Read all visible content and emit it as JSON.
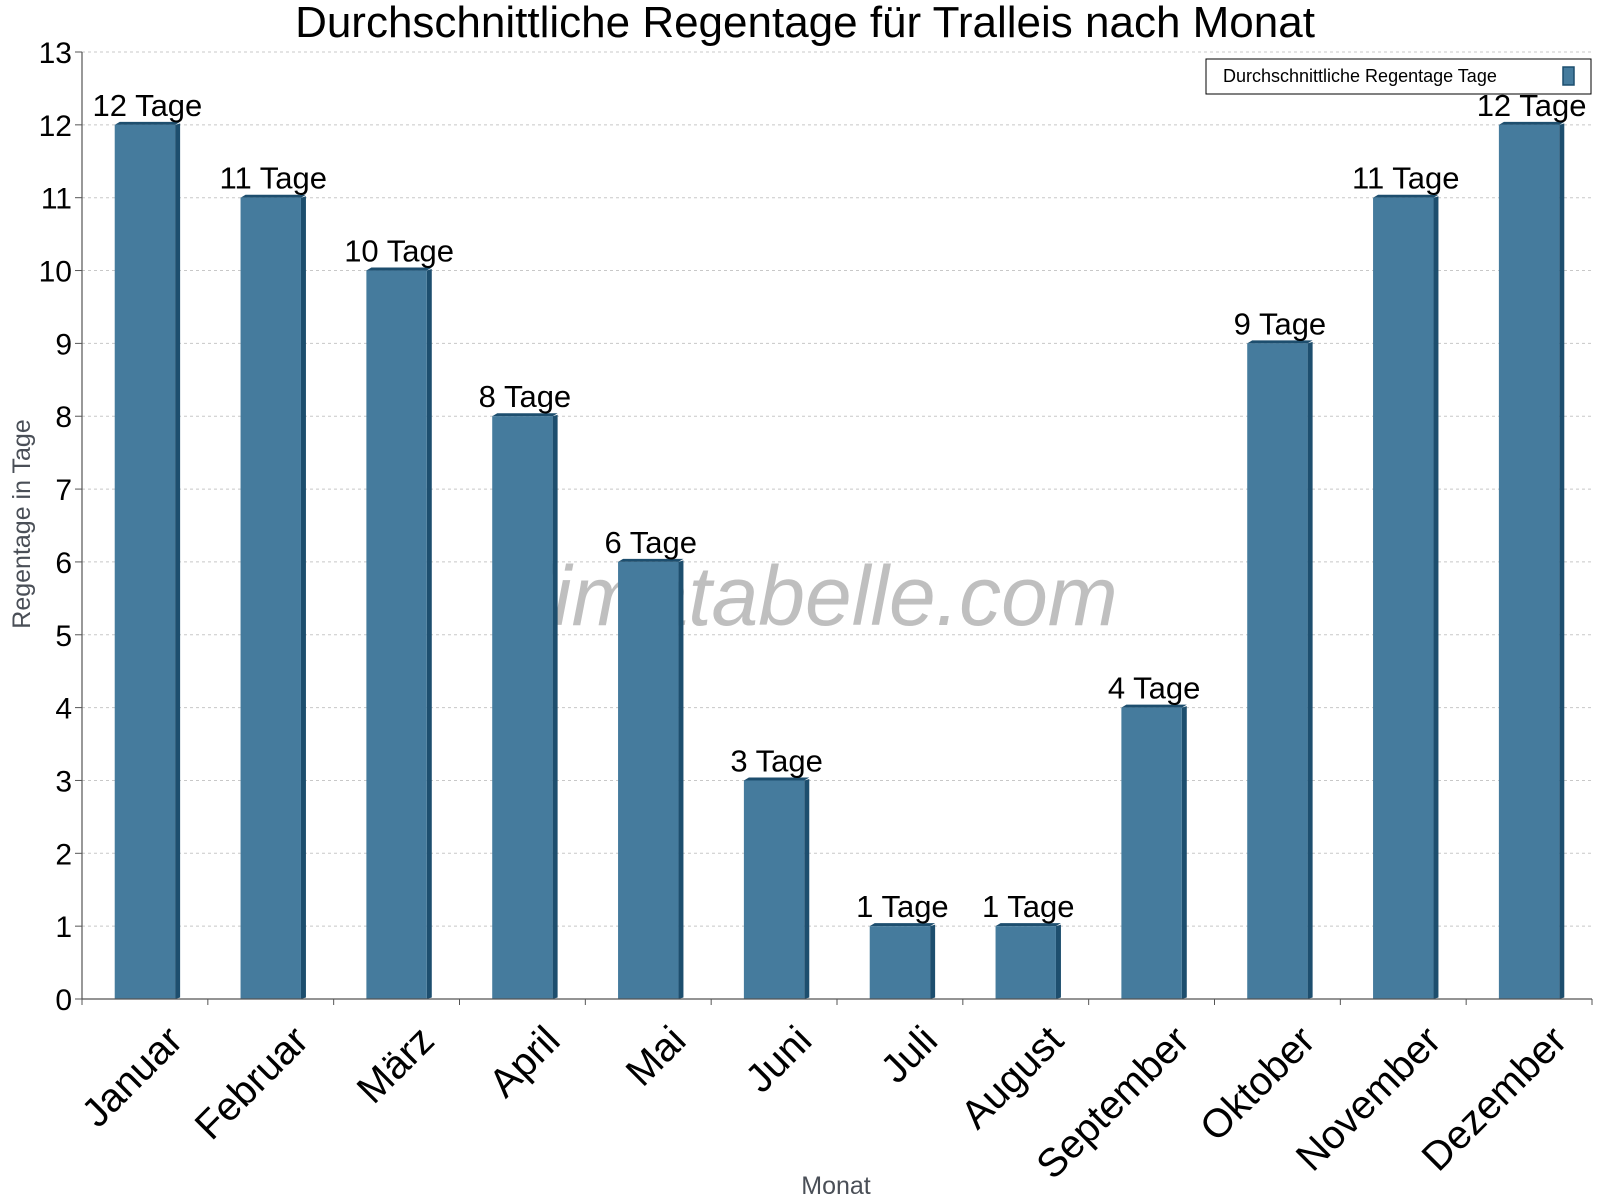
{
  "chart_data": {
    "type": "bar",
    "title": "Durchschnittliche Regentage für Tralleis nach Monat",
    "xlabel": "Monat",
    "ylabel": "Regentage in Tage",
    "categories": [
      "Januar",
      "Februar",
      "März",
      "April",
      "Mai",
      "Juni",
      "Juli",
      "August",
      "September",
      "Oktober",
      "November",
      "Dezember"
    ],
    "series": [
      {
        "name": "Durchschnittliche Regentage Tage",
        "values": [
          12,
          11,
          10,
          8,
          6,
          3,
          1,
          1,
          4,
          9,
          11,
          12
        ]
      }
    ],
    "data_labels": [
      "12 Tage",
      "11 Tage",
      "10 Tage",
      "8 Tage",
      "6 Tage",
      "3 Tage",
      "1 Tage",
      "1 Tage",
      "4 Tage",
      "9 Tage",
      "11 Tage",
      "12 Tage"
    ],
    "yticks": [
      0,
      1,
      2,
      3,
      4,
      5,
      6,
      7,
      8,
      9,
      10,
      11,
      12,
      13
    ],
    "ylim": [
      0,
      13
    ],
    "grid": true,
    "legend_position": "top-right",
    "watermark": "klimatabelle.com",
    "colors": {
      "bar": "#457b9d",
      "bar_side": "#1d4e6e",
      "bar_top": "#1d4e6e",
      "grid": "#c8c8c8",
      "axis": "#555555"
    }
  }
}
